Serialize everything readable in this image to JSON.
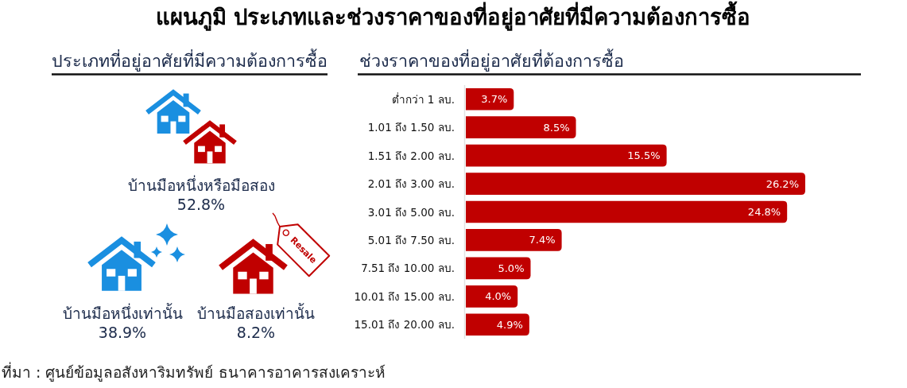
{
  "chart_data": [
    {
      "type": "other",
      "title": "แผนภูมิ ประเภทและช่วงราคาของที่อยู่อาศัยที่มีความต้องการซื้อ",
      "subtitle": "ประเภทที่อยู่อาศัยที่มีความต้องการซื้อ",
      "categories": [
        "บ้านมือหนึ่งหรือมือสอง",
        "บ้านมือหนึ่งเท่านั้น",
        "บ้านมือสองเท่านั้น"
      ],
      "value_labels": [
        "52.8%",
        "38.9%",
        "8.2%"
      ],
      "annotations": [
        "Resale"
      ]
    },
    {
      "type": "bar",
      "orientation": "horizontal",
      "title": "ช่วงราคาของที่อยู่อาศัยที่ต้องการซื้อ",
      "categories": [
        "ต่ำกว่า 1 ลบ.",
        "1.01 ถึง 1.50 ลบ.",
        "1.51 ถึง 2.00 ลบ.",
        "2.01 ถึง 3.00 ลบ.",
        "3.01 ถึง 5.00 ลบ.",
        "5.01 ถึง 7.50 ลบ.",
        "7.51 ถึง 10.00 ลบ.",
        "10.01 ถึง 15.00 ลบ.",
        "15.01 ถึง 20.00 ลบ."
      ],
      "values": [
        3.7,
        8.5,
        15.5,
        26.2,
        24.8,
        7.4,
        5.0,
        4.0,
        4.9
      ],
      "value_labels": [
        "3.7%",
        "8.5%",
        "15.5%",
        "26.2%",
        "24.8%",
        "7.4%",
        "5.0%",
        "4.0%",
        "4.9%"
      ],
      "color": "#c00000",
      "annotations": [
        "ที่มา : ศูนย์ข้อมูลอสังหาริมทรัพย์ ธนาคารอาคารสงเคราะห์"
      ]
    }
  ]
}
